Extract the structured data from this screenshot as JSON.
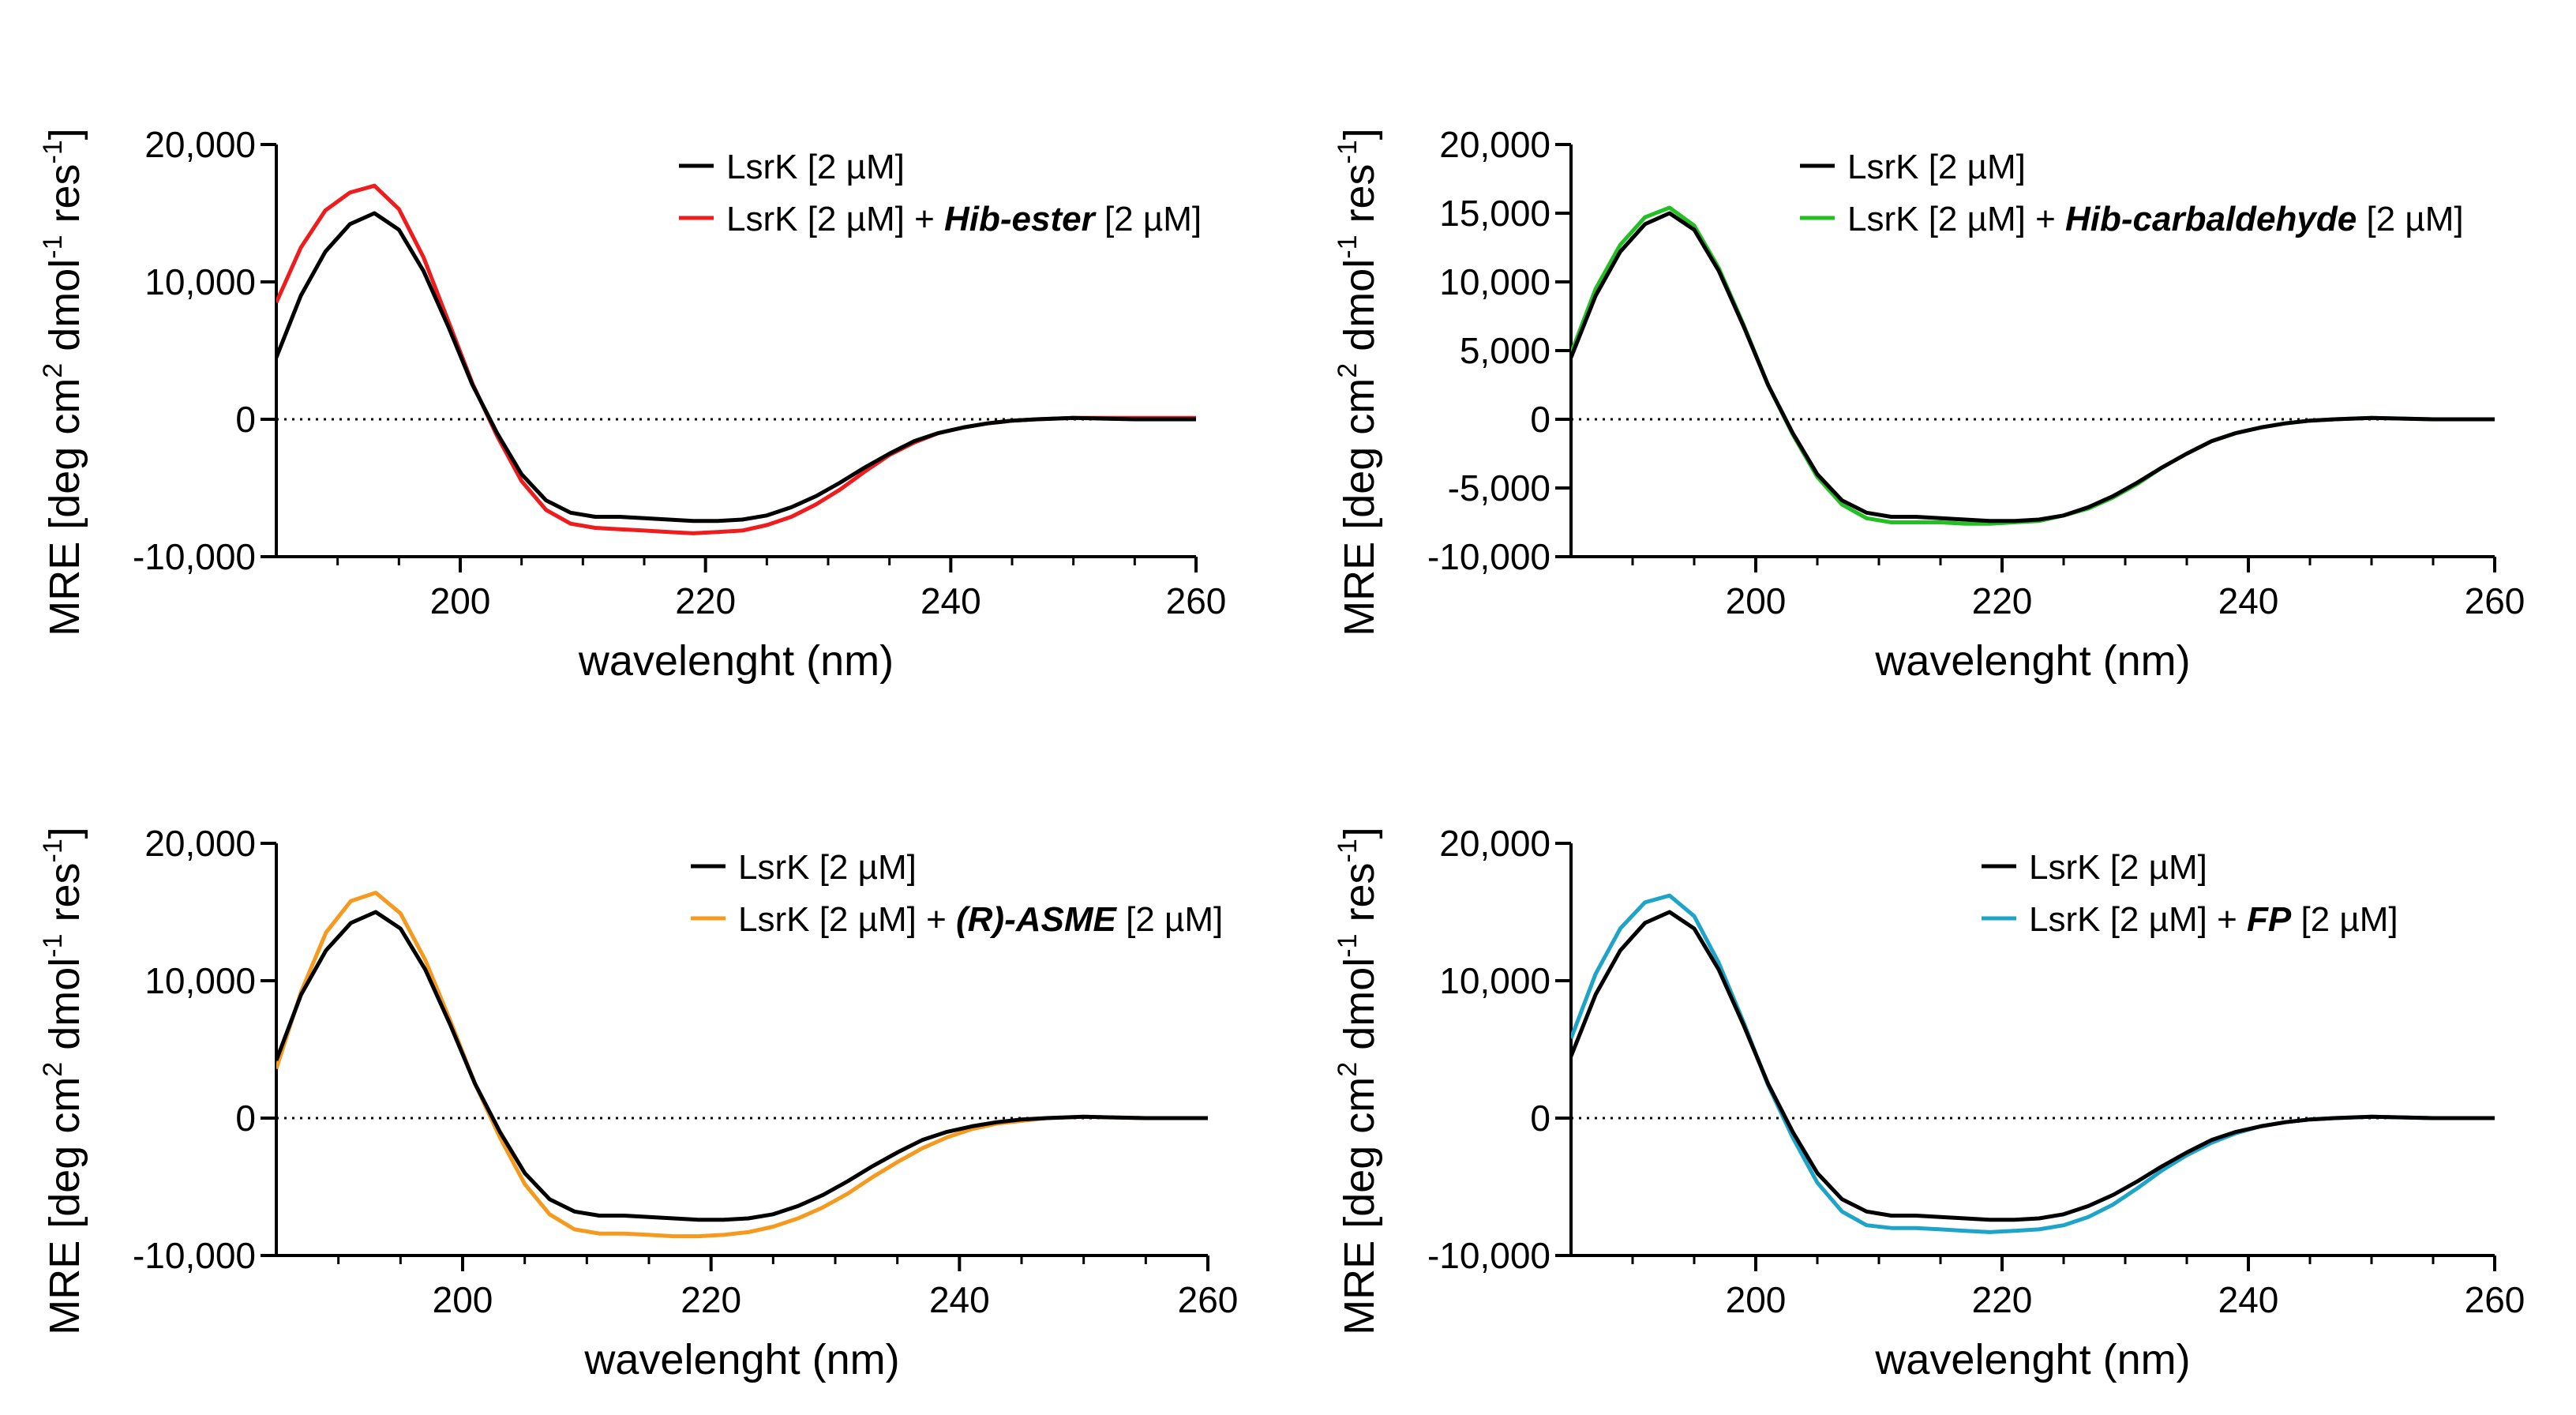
{
  "chart_data": [
    {
      "type": "line",
      "panel": "top-left",
      "xlabel": "wavelenght (nm)",
      "ylabel": "MRE [deg cm2 dmol-1 res-1]",
      "ylabel_parts": {
        "a": "MRE [deg cm",
        "b": "2",
        "c": " dmol",
        "d": "-1",
        "e": " res",
        "f": "-1",
        "g": "]"
      },
      "xlim": [
        185,
        260
      ],
      "ylim": [
        -10000,
        20000
      ],
      "xticks": [
        "200",
        "220",
        "240",
        "260"
      ],
      "yticks": [
        "20,000",
        "10,000",
        "0",
        "-10,000"
      ],
      "legend": [
        {
          "name": "LsrK [2 µM]",
          "pre": "LsrK [2 µM]",
          "bold": "",
          "post": "",
          "color": "#000000"
        },
        {
          "name": "LsrK [2 µM] + Hib-ester [2 µM]",
          "pre": "LsrK [2 µM] + ",
          "bold": "Hib-ester",
          "post": " [2 µM]",
          "color": "#ee1c1c"
        }
      ],
      "series": [
        {
          "name": "LsrK [2 µM]",
          "color": "#000000",
          "x": [
            185,
            187,
            189,
            191,
            193,
            195,
            197,
            199,
            201,
            203,
            205,
            207,
            209,
            211,
            213,
            215,
            217,
            219,
            221,
            223,
            225,
            227,
            229,
            231,
            233,
            235,
            237,
            239,
            241,
            243,
            245,
            247,
            250,
            255,
            260
          ],
          "y": [
            4500,
            9000,
            12200,
            14200,
            15000,
            13800,
            10800,
            6800,
            2500,
            -1000,
            -4000,
            -5900,
            -6800,
            -7100,
            -7100,
            -7200,
            -7300,
            -7400,
            -7400,
            -7300,
            -7000,
            -6400,
            -5600,
            -4600,
            -3500,
            -2500,
            -1600,
            -1000,
            -600,
            -300,
            -100,
            0,
            100,
            0,
            0
          ]
        },
        {
          "name": "LsrK [2 µM] + Hib-ester [2 µM]",
          "color": "#ee1c1c",
          "x": [
            185,
            187,
            189,
            191,
            193,
            195,
            197,
            199,
            201,
            203,
            205,
            207,
            209,
            211,
            213,
            215,
            217,
            219,
            221,
            223,
            225,
            227,
            229,
            231,
            233,
            235,
            237,
            239,
            241,
            243,
            245,
            247,
            250,
            255,
            260
          ],
          "y": [
            8500,
            12500,
            15200,
            16500,
            17000,
            15300,
            11800,
            7200,
            2600,
            -1200,
            -4500,
            -6600,
            -7600,
            -7900,
            -8000,
            -8100,
            -8200,
            -8300,
            -8200,
            -8100,
            -7700,
            -7100,
            -6200,
            -5100,
            -3800,
            -2600,
            -1700,
            -1000,
            -600,
            -300,
            -100,
            0,
            100,
            100,
            100
          ]
        }
      ]
    },
    {
      "type": "line",
      "panel": "top-right",
      "xlabel": "wavelenght (nm)",
      "ylabel": "MRE [deg cm2 dmol-1 res-1]",
      "ylabel_parts": {
        "a": "MRE [deg cm",
        "b": "2",
        "c": " dmol",
        "d": "-1",
        "e": " res",
        "f": "-1",
        "g": "]"
      },
      "xlim": [
        185,
        260
      ],
      "ylim": [
        -10000,
        20000
      ],
      "xticks": [
        "200",
        "220",
        "240",
        "260"
      ],
      "yticks": [
        "20,000",
        "15,000",
        "10,000",
        "5,000",
        "0",
        "-5,000",
        "-10,000"
      ],
      "legend": [
        {
          "name": "LsrK [2 µM]",
          "pre": "LsrK [2 µM]",
          "bold": "",
          "post": "",
          "color": "#000000"
        },
        {
          "name": "LsrK [2 µM] + Hib-carbaldehyde [2 µM]",
          "pre": "LsrK [2 µM] + ",
          "bold": "Hib-carbaldehyde",
          "post": " [2 µM]",
          "color": "#22c022"
        }
      ],
      "series": [
        {
          "name": "LsrK [2 µM]",
          "color": "#000000",
          "x": [
            185,
            187,
            189,
            191,
            193,
            195,
            197,
            199,
            201,
            203,
            205,
            207,
            209,
            211,
            213,
            215,
            217,
            219,
            221,
            223,
            225,
            227,
            229,
            231,
            233,
            235,
            237,
            239,
            241,
            243,
            245,
            247,
            250,
            255,
            260
          ],
          "y": [
            4500,
            9000,
            12200,
            14200,
            15000,
            13800,
            10800,
            6800,
            2500,
            -1000,
            -4000,
            -5900,
            -6800,
            -7100,
            -7100,
            -7200,
            -7300,
            -7400,
            -7400,
            -7300,
            -7000,
            -6400,
            -5600,
            -4600,
            -3500,
            -2500,
            -1600,
            -1000,
            -600,
            -300,
            -100,
            0,
            100,
            0,
            0
          ]
        },
        {
          "name": "LsrK [2 µM] + Hib-carbaldehyde [2 µM]",
          "color": "#22c022",
          "x": [
            185,
            187,
            189,
            191,
            193,
            195,
            197,
            199,
            201,
            203,
            205,
            207,
            209,
            211,
            213,
            215,
            217,
            219,
            221,
            223,
            225,
            227,
            229,
            231,
            233,
            235,
            237,
            239,
            241,
            243,
            245,
            247,
            250,
            255,
            260
          ],
          "y": [
            4800,
            9500,
            12700,
            14700,
            15400,
            14100,
            11000,
            6900,
            2500,
            -1100,
            -4200,
            -6200,
            -7200,
            -7500,
            -7500,
            -7500,
            -7600,
            -7600,
            -7500,
            -7400,
            -7000,
            -6500,
            -5700,
            -4700,
            -3500,
            -2500,
            -1600,
            -1000,
            -600,
            -300,
            -100,
            0,
            100,
            0,
            0
          ]
        }
      ]
    },
    {
      "type": "line",
      "panel": "bottom-left",
      "xlabel": "wavelenght (nm)",
      "ylabel": "MRE [deg cm2 dmol-1 res-1]",
      "ylabel_parts": {
        "a": "MRE [deg cm",
        "b": "2",
        "c": " dmol",
        "d": "-1",
        "e": " res",
        "f": "-1",
        "g": "]"
      },
      "xlim": [
        185,
        260
      ],
      "ylim": [
        -10000,
        20000
      ],
      "xticks": [
        "200",
        "220",
        "240",
        "260"
      ],
      "yticks": [
        "20,000",
        "10,000",
        "0",
        "-10,000"
      ],
      "legend": [
        {
          "name": "LsrK [2 µM]",
          "pre": "LsrK [2 µM]",
          "bold": "",
          "post": "",
          "color": "#000000"
        },
        {
          "name": "LsrK [2 µM] + (R)-ASME [2 µM]",
          "pre": "LsrK [2 µM] + ",
          "bold": "(R)-ASME",
          "post": " [2 µM]",
          "color": "#f59a1e"
        }
      ],
      "series": [
        {
          "name": "LsrK [2 µM]",
          "color": "#000000",
          "x": [
            185,
            187,
            189,
            191,
            193,
            195,
            197,
            199,
            201,
            203,
            205,
            207,
            209,
            211,
            213,
            215,
            217,
            219,
            221,
            223,
            225,
            227,
            229,
            231,
            233,
            235,
            237,
            239,
            241,
            243,
            245,
            247,
            250,
            255,
            260
          ],
          "y": [
            4200,
            9000,
            12200,
            14200,
            15000,
            13800,
            10800,
            6800,
            2500,
            -1000,
            -4000,
            -5900,
            -6800,
            -7100,
            -7100,
            -7200,
            -7300,
            -7400,
            -7400,
            -7300,
            -7000,
            -6400,
            -5600,
            -4600,
            -3500,
            -2500,
            -1600,
            -1000,
            -600,
            -300,
            -100,
            0,
            100,
            0,
            0
          ]
        },
        {
          "name": "LsrK [2 µM] + (R)-ASME [2 µM]",
          "color": "#f59a1e",
          "x": [
            185,
            187,
            189,
            191,
            193,
            195,
            197,
            199,
            201,
            203,
            205,
            207,
            209,
            211,
            213,
            215,
            217,
            219,
            221,
            223,
            225,
            227,
            229,
            231,
            233,
            235,
            237,
            239,
            241,
            243,
            245,
            247,
            250,
            255,
            260
          ],
          "y": [
            3600,
            9200,
            13500,
            15800,
            16400,
            14900,
            11500,
            7100,
            2500,
            -1400,
            -4800,
            -7000,
            -8100,
            -8400,
            -8400,
            -8500,
            -8600,
            -8600,
            -8500,
            -8300,
            -7900,
            -7300,
            -6500,
            -5500,
            -4300,
            -3200,
            -2200,
            -1400,
            -800,
            -400,
            -200,
            0,
            100,
            0,
            0
          ]
        }
      ]
    },
    {
      "type": "line",
      "panel": "bottom-right",
      "xlabel": "wavelenght (nm)",
      "ylabel": "MRE [deg cm2 dmol-1 res-1]",
      "ylabel_parts": {
        "a": "MRE [deg cm",
        "b": "2",
        "c": " dmol",
        "d": "-1",
        "e": " res",
        "f": "-1",
        "g": "]"
      },
      "xlim": [
        185,
        260
      ],
      "ylim": [
        -10000,
        20000
      ],
      "xticks": [
        "200",
        "220",
        "240",
        "260"
      ],
      "yticks": [
        "20,000",
        "10,000",
        "0",
        "-10,000"
      ],
      "legend": [
        {
          "name": "LsrK [2 µM]",
          "pre": "LsrK [2 µM]",
          "bold": "",
          "post": "",
          "color": "#000000"
        },
        {
          "name": "LsrK [2 µM] + FP [2 µM]",
          "pre": "LsrK [2 µM] + ",
          "bold": "FP",
          "post": " [2 µM]",
          "color": "#1ea4c8"
        }
      ],
      "series": [
        {
          "name": "LsrK [2 µM]",
          "color": "#000000",
          "x": [
            185,
            187,
            189,
            191,
            193,
            195,
            197,
            199,
            201,
            203,
            205,
            207,
            209,
            211,
            213,
            215,
            217,
            219,
            221,
            223,
            225,
            227,
            229,
            231,
            233,
            235,
            237,
            239,
            241,
            243,
            245,
            247,
            250,
            255,
            260
          ],
          "y": [
            4500,
            9000,
            12200,
            14200,
            15000,
            13800,
            10800,
            6800,
            2500,
            -1000,
            -4000,
            -5900,
            -6800,
            -7100,
            -7100,
            -7200,
            -7300,
            -7400,
            -7400,
            -7300,
            -7000,
            -6400,
            -5600,
            -4600,
            -3500,
            -2500,
            -1600,
            -1000,
            -600,
            -300,
            -100,
            0,
            100,
            0,
            0
          ]
        },
        {
          "name": "LsrK [2 µM] + FP [2 µM]",
          "color": "#1ea4c8",
          "x": [
            185,
            187,
            189,
            191,
            193,
            195,
            197,
            199,
            201,
            203,
            205,
            207,
            209,
            211,
            213,
            215,
            217,
            219,
            221,
            223,
            225,
            227,
            229,
            231,
            233,
            235,
            237,
            239,
            241,
            243,
            245,
            247,
            250,
            255,
            260
          ],
          "y": [
            5800,
            10500,
            13800,
            15700,
            16200,
            14700,
            11300,
            7000,
            2400,
            -1400,
            -4700,
            -6800,
            -7800,
            -8000,
            -8000,
            -8100,
            -8200,
            -8300,
            -8200,
            -8100,
            -7800,
            -7200,
            -6300,
            -5100,
            -3800,
            -2700,
            -1800,
            -1100,
            -600,
            -300,
            -100,
            0,
            100,
            0,
            0
          ]
        }
      ]
    }
  ]
}
